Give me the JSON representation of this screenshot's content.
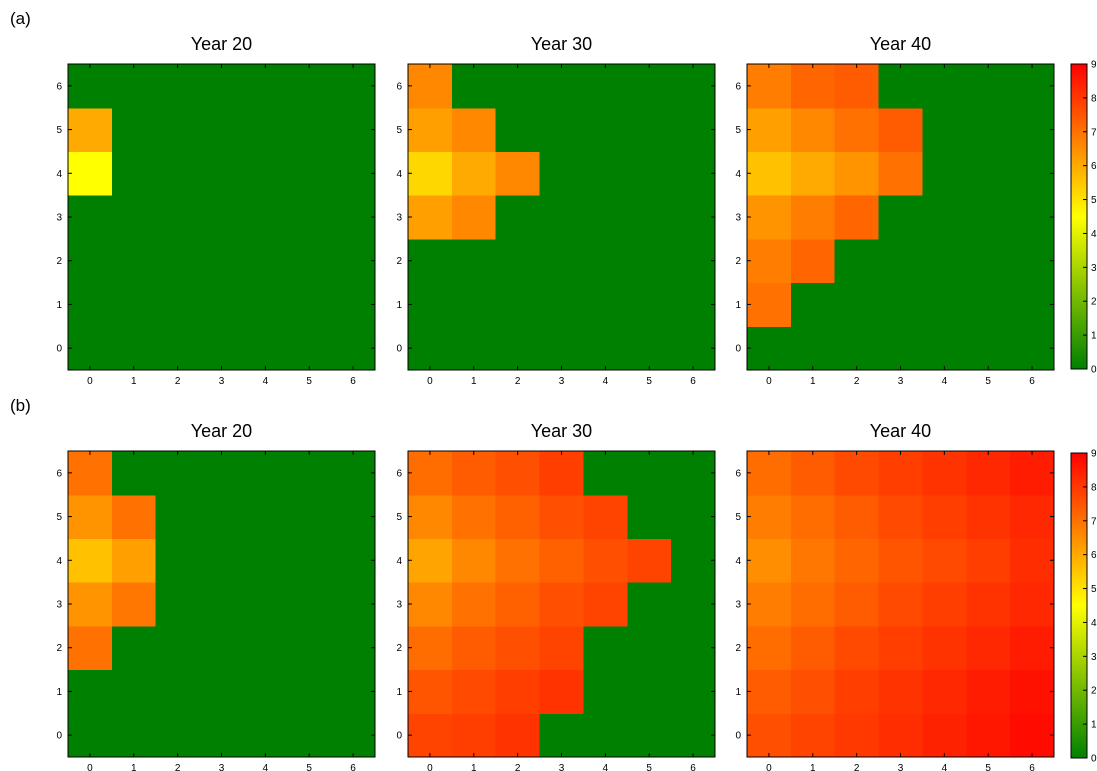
{
  "chart_data": {
    "type": "heatmap",
    "grid": {
      "x_ticks": [
        "0",
        "1",
        "2",
        "3",
        "4",
        "5",
        "6"
      ],
      "y_ticks": [
        "0",
        "1",
        "2",
        "3",
        "4",
        "5",
        "6"
      ]
    },
    "colormap": {
      "low": "#008000",
      "mid": "#ffff00",
      "high": "#ff0000"
    },
    "colorbar": {
      "range": [
        0,
        9
      ],
      "ticks": [
        "0",
        "1",
        "2",
        "3",
        "4",
        "5",
        "6",
        "7",
        "8",
        "9"
      ]
    },
    "rows": [
      {
        "label": "(a)",
        "panels": [
          {
            "title": "Year 20",
            "z": [
              [
                0,
                0,
                0,
                0,
                0,
                0,
                0
              ],
              [
                0,
                0,
                0,
                0,
                0,
                0,
                0
              ],
              [
                0,
                0,
                0,
                0,
                0,
                0,
                0
              ],
              [
                0,
                0,
                0,
                0,
                0,
                0,
                0
              ],
              [
                4.5,
                0,
                0,
                0,
                0,
                0,
                0
              ],
              [
                6.0,
                0,
                0,
                0,
                0,
                0,
                0
              ],
              [
                0,
                0,
                0,
                0,
                0,
                0,
                0
              ]
            ]
          },
          {
            "title": "Year 30",
            "z": [
              [
                0,
                0,
                0,
                0,
                0,
                0,
                0
              ],
              [
                0,
                0,
                0,
                0,
                0,
                0,
                0
              ],
              [
                0,
                0,
                0,
                0,
                0,
                0,
                0
              ],
              [
                6.2,
                6.6,
                0,
                0,
                0,
                0,
                0
              ],
              [
                5.2,
                6.0,
                6.6,
                0,
                0,
                0,
                0
              ],
              [
                6.2,
                6.6,
                0,
                0,
                0,
                0,
                0
              ],
              [
                6.6,
                0,
                0,
                0,
                0,
                0,
                0
              ]
            ]
          },
          {
            "title": "Year 40",
            "z": [
              [
                0,
                0,
                0,
                0,
                0,
                0,
                0
              ],
              [
                7.0,
                0,
                0,
                0,
                0,
                0,
                0
              ],
              [
                6.8,
                7.2,
                0,
                0,
                0,
                0,
                0
              ],
              [
                6.4,
                6.8,
                7.2,
                0,
                0,
                0,
                0
              ],
              [
                5.6,
                6.0,
                6.4,
                7.0,
                0,
                0,
                0
              ],
              [
                6.2,
                6.6,
                7.0,
                7.4,
                0,
                0,
                0
              ],
              [
                6.8,
                7.2,
                7.4,
                0,
                0,
                0,
                0
              ]
            ]
          }
        ]
      },
      {
        "label": "(b)",
        "panels": [
          {
            "title": "Year 20",
            "z": [
              [
                0,
                0,
                0,
                0,
                0,
                0,
                0
              ],
              [
                0,
                0,
                0,
                0,
                0,
                0,
                0
              ],
              [
                7.0,
                0,
                0,
                0,
                0,
                0,
                0
              ],
              [
                6.4,
                6.9,
                0,
                0,
                0,
                0,
                0
              ],
              [
                5.6,
                6.2,
                0,
                0,
                0,
                0,
                0
              ],
              [
                6.4,
                7.0,
                0,
                0,
                0,
                0,
                0
              ],
              [
                7.0,
                0,
                0,
                0,
                0,
                0,
                0
              ]
            ]
          },
          {
            "title": "Year 30",
            "z": [
              [
                7.8,
                7.9,
                8.1,
                0,
                0,
                0,
                0
              ],
              [
                7.5,
                7.7,
                7.9,
                8.1,
                0,
                0,
                0
              ],
              [
                7.1,
                7.4,
                7.6,
                7.8,
                0,
                0,
                0
              ],
              [
                6.6,
                7.0,
                7.3,
                7.6,
                7.8,
                0,
                0
              ],
              [
                6.1,
                6.6,
                7.0,
                7.3,
                7.6,
                7.8,
                0
              ],
              [
                6.6,
                7.0,
                7.3,
                7.6,
                7.8,
                0,
                0
              ],
              [
                7.1,
                7.4,
                7.6,
                7.9,
                0,
                0,
                0
              ]
            ]
          },
          {
            "title": "Year 40",
            "z": [
              [
                7.6,
                7.8,
                8.0,
                8.2,
                8.4,
                8.6,
                8.8
              ],
              [
                7.4,
                7.6,
                7.9,
                8.1,
                8.3,
                8.5,
                8.7
              ],
              [
                7.1,
                7.4,
                7.7,
                7.9,
                8.1,
                8.3,
                8.5
              ],
              [
                6.8,
                7.1,
                7.4,
                7.7,
                7.9,
                8.1,
                8.3
              ],
              [
                6.5,
                6.9,
                7.2,
                7.5,
                7.7,
                7.9,
                8.2
              ],
              [
                6.8,
                7.1,
                7.4,
                7.7,
                7.9,
                8.1,
                8.3
              ],
              [
                7.1,
                7.4,
                7.7,
                7.9,
                8.1,
                8.3,
                8.5
              ]
            ]
          }
        ]
      }
    ]
  }
}
